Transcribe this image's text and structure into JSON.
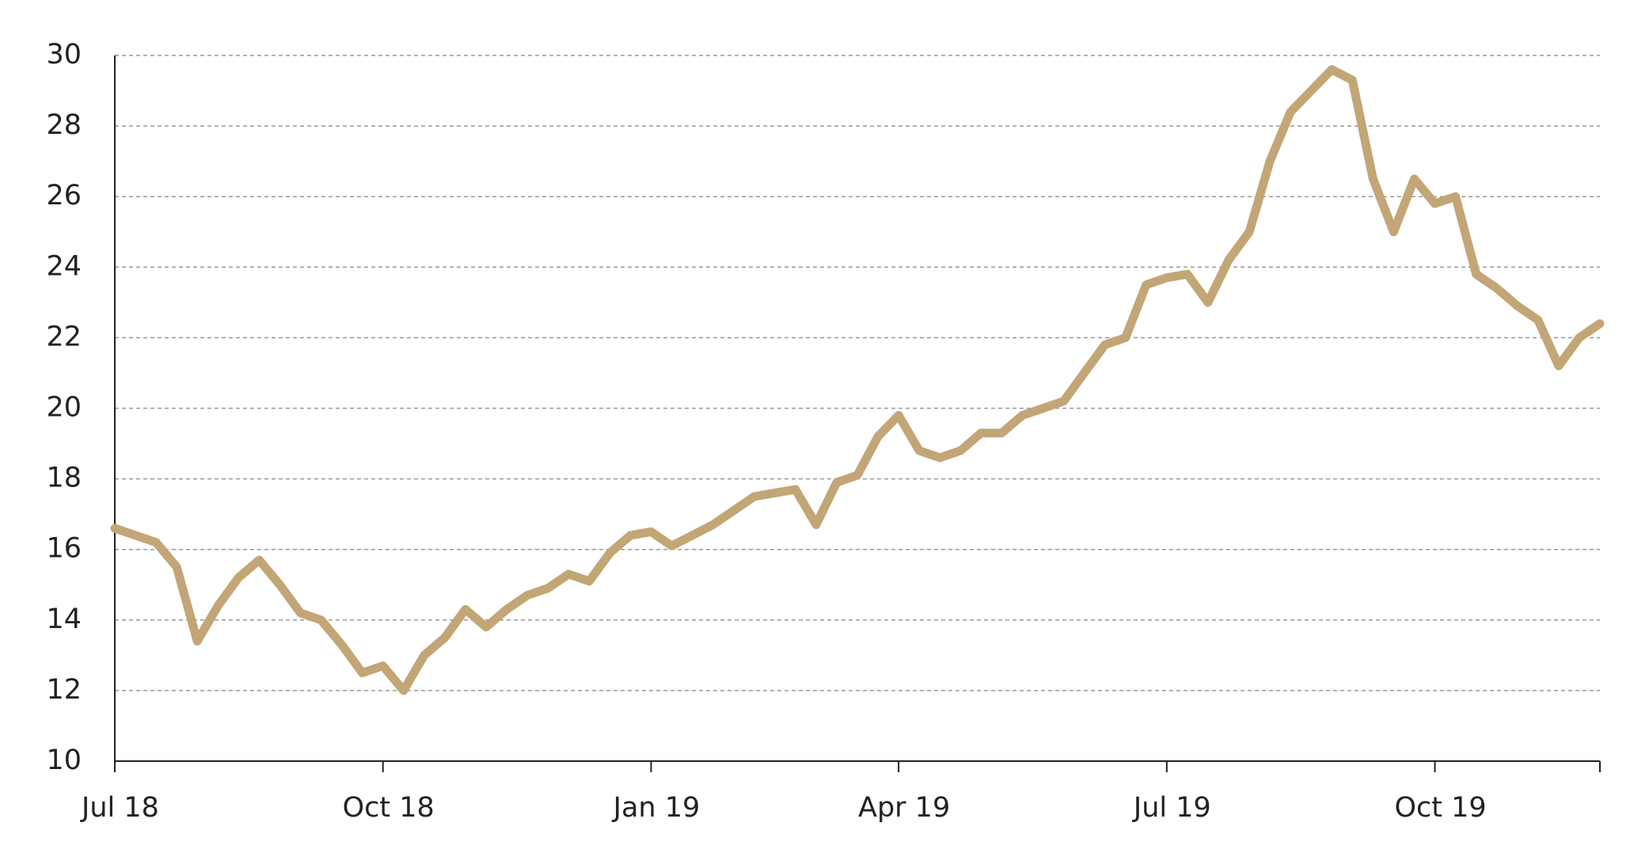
{
  "chart_data": {
    "type": "line",
    "categories": [
      "Jul 18",
      null,
      null,
      null,
      null,
      null,
      null,
      null,
      null,
      null,
      null,
      null,
      null,
      "Oct 18",
      null,
      null,
      null,
      null,
      null,
      null,
      null,
      null,
      null,
      null,
      null,
      null,
      "Jan 19",
      null,
      null,
      null,
      null,
      null,
      null,
      null,
      null,
      null,
      null,
      null,
      "Apr 19",
      null,
      null,
      null,
      null,
      null,
      null,
      null,
      null,
      null,
      null,
      null,
      null,
      "Jul 19",
      null,
      null,
      null,
      null,
      null,
      null,
      null,
      null,
      null,
      null,
      null,
      null,
      "Oct 19",
      null,
      null,
      null,
      null,
      null,
      null,
      null,
      null
    ],
    "values": [
      16.6,
      16.4,
      16.2,
      15.5,
      13.4,
      14.4,
      15.2,
      15.7,
      15.0,
      14.2,
      14.0,
      13.3,
      12.5,
      12.7,
      12.0,
      13.0,
      13.5,
      14.3,
      13.8,
      14.3,
      14.7,
      14.9,
      15.3,
      15.1,
      15.9,
      16.4,
      16.5,
      16.1,
      16.4,
      16.7,
      17.1,
      17.5,
      17.6,
      17.7,
      16.7,
      17.9,
      18.1,
      19.2,
      19.8,
      18.8,
      18.6,
      18.8,
      19.3,
      19.3,
      19.8,
      20.0,
      20.2,
      21.0,
      21.8,
      22.0,
      23.5,
      23.7,
      23.8,
      23.0,
      24.2,
      25.0,
      27.0,
      28.4,
      29.0,
      29.6,
      29.3,
      26.5,
      25.0,
      26.5,
      25.8,
      26.0,
      23.8,
      23.4,
      22.9,
      22.5,
      21.2,
      22.0,
      22.4
    ],
    "color": "#c3a676",
    "ylim": [
      10,
      30
    ],
    "yticks": [
      10,
      12,
      14,
      16,
      18,
      20,
      22,
      24,
      26,
      28,
      30
    ],
    "grid": true
  }
}
